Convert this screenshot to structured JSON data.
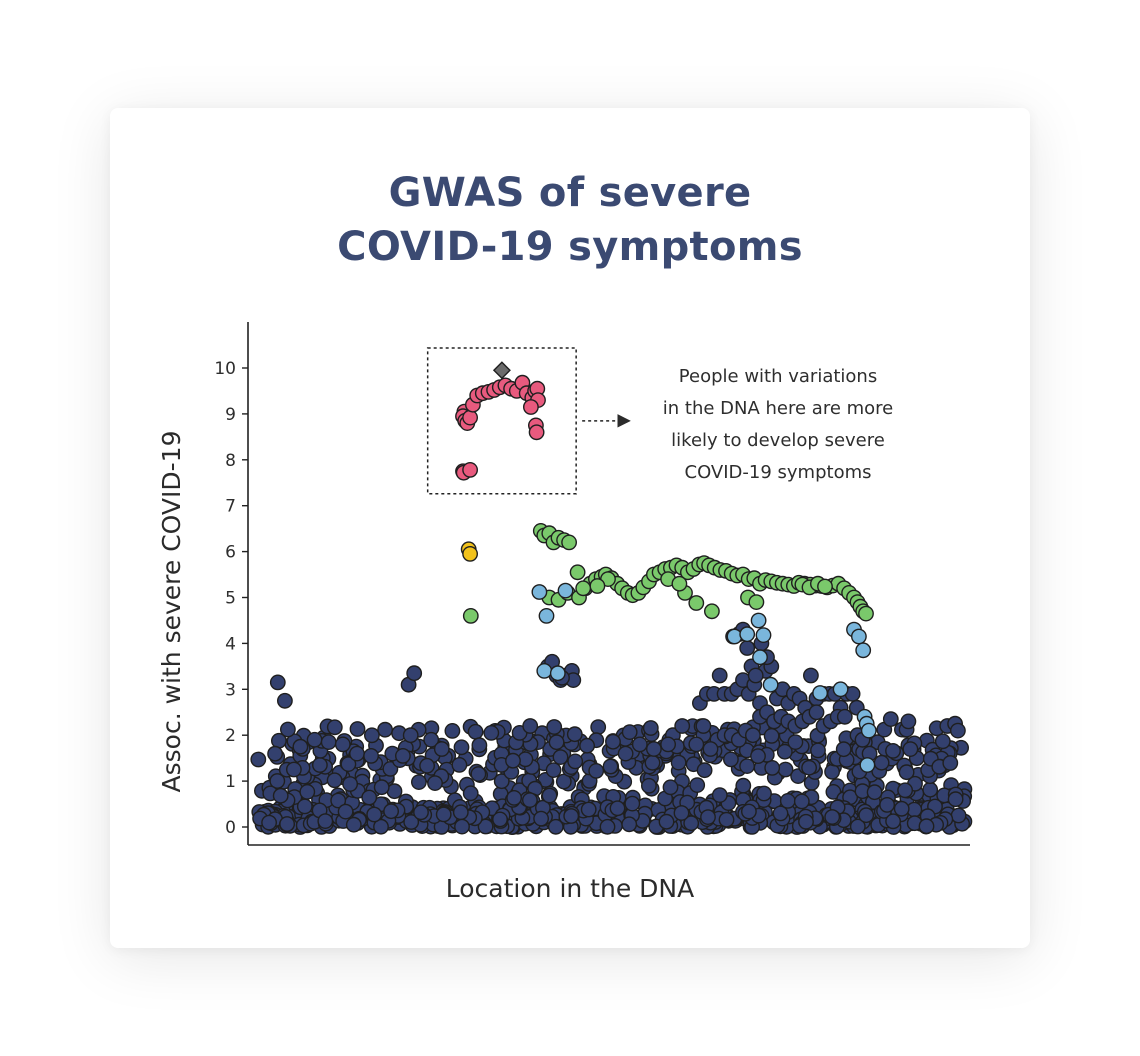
{
  "chart_data": {
    "type": "scatter",
    "title_lines": [
      "GWAS of severe",
      "COVID-19 symptoms"
    ],
    "xlabel": "Location in the DNA",
    "ylabel": "Assoc. with severe COVID-19",
    "ylim": [
      -0.3,
      11.3
    ],
    "yticks": [
      0,
      1,
      2,
      3,
      4,
      5,
      6,
      7,
      8,
      9,
      10
    ],
    "xlim": [
      0,
      100
    ],
    "grid": false,
    "annotation": {
      "lines": [
        "People with variations",
        "in the DNA here are more",
        "likely to develop severe",
        "COVID-19 symptoms"
      ],
      "box_x": [
        24,
        45
      ],
      "box_y": [
        7.0,
        10.0
      ]
    },
    "colors": {
      "background": "#33406e",
      "green": "#7ac96b",
      "light_blue": "#7ab6dc",
      "pink": "#e85a7e",
      "yellow": "#f2c21b",
      "lead": "#6b6b6b",
      "outline": "#1f1f1f"
    },
    "series": [
      {
        "name": "",
        "color_key": "pink",
        "x": [
          29.2,
          29.0,
          29.3,
          29.6,
          30.0,
          30.4,
          31.0,
          31.8,
          32.6,
          33.4,
          34.2,
          35.0,
          35.8,
          36.6,
          37.4,
          38.0,
          38.8,
          39.2,
          39.5,
          39.6,
          39.3,
          39.4,
          38.6,
          29.0,
          29.1,
          30.0
        ],
        "y": [
          9.05,
          8.95,
          8.85,
          8.8,
          8.92,
          9.2,
          9.4,
          9.45,
          9.48,
          9.52,
          9.58,
          9.62,
          9.55,
          9.5,
          9.68,
          9.45,
          9.35,
          9.5,
          9.55,
          9.3,
          8.75,
          8.6,
          9.15,
          7.75,
          7.72,
          7.78
        ]
      },
      {
        "name": "",
        "color_key": "lead",
        "x": [
          34.5
        ],
        "y": [
          9.95
        ]
      },
      {
        "name": "",
        "color_key": "yellow",
        "x": [
          29.8,
          30.0
        ],
        "y": [
          6.05,
          5.95
        ]
      },
      {
        "name": "",
        "color_key": "green",
        "x": [
          30.1,
          40.0,
          40.5,
          41.2,
          41.8,
          42.5,
          43.3,
          44.0,
          45.2,
          46.3,
          47.0,
          47.8,
          48.6,
          49.2,
          50.0,
          50.8,
          51.5,
          52.3,
          53.0,
          53.8,
          54.5,
          55.3,
          56.0,
          56.8,
          57.6,
          58.4,
          59.2,
          60.0,
          60.8,
          61.6,
          62.4,
          63.1,
          63.8,
          64.6,
          65.4,
          66.2,
          67.0,
          67.8,
          68.6,
          69.4,
          70.2,
          71.0,
          71.8,
          72.6,
          73.4,
          74.2,
          75.0,
          75.8,
          76.5,
          77.3,
          78.1,
          78.9,
          79.7,
          80.5,
          81.3,
          82.1,
          82.9,
          83.6,
          84.3,
          84.8,
          85.2,
          85.6,
          86.0,
          41.2,
          42.5,
          43.8,
          49.5,
          48.0,
          62.0,
          60.4,
          64.2,
          69.3,
          70.5,
          45.4,
          46.0,
          58.0,
          59.6,
          77.0,
          78.0,
          79.2,
          80.2
        ],
        "y": [
          4.6,
          6.45,
          6.35,
          6.4,
          6.2,
          6.3,
          6.25,
          6.2,
          5.55,
          5.2,
          5.3,
          5.4,
          5.45,
          5.5,
          5.42,
          5.3,
          5.2,
          5.1,
          5.05,
          5.1,
          5.22,
          5.35,
          5.5,
          5.55,
          5.62,
          5.65,
          5.7,
          5.65,
          5.55,
          5.62,
          5.72,
          5.75,
          5.7,
          5.65,
          5.6,
          5.58,
          5.52,
          5.48,
          5.5,
          5.4,
          5.42,
          5.3,
          5.38,
          5.35,
          5.32,
          5.3,
          5.28,
          5.25,
          5.32,
          5.3,
          5.28,
          5.26,
          5.25,
          5.22,
          5.26,
          5.3,
          5.2,
          5.1,
          5.0,
          4.9,
          4.8,
          4.7,
          4.65,
          5.0,
          4.95,
          5.1,
          5.4,
          5.25,
          4.88,
          5.1,
          4.7,
          5.0,
          4.9,
          5.0,
          5.2,
          5.4,
          5.3,
          5.28,
          5.22,
          5.3,
          5.24
        ]
      },
      {
        "name": "",
        "color_key": "light_blue",
        "x": [
          39.8,
          40.8,
          43.5,
          67.4,
          69.2,
          70.8,
          71.5,
          71.0,
          72.5,
          79.5,
          82.4,
          84.3,
          85.0,
          85.6,
          85.8,
          86.1,
          86.4,
          86.2,
          40.5,
          42.4
        ],
        "y": [
          5.12,
          4.6,
          5.15,
          4.15,
          4.2,
          4.5,
          4.18,
          3.7,
          3.1,
          2.92,
          3.0,
          4.3,
          4.15,
          3.85,
          2.4,
          2.25,
          2.1,
          1.35,
          3.4,
          3.35
        ]
      }
    ]
  }
}
